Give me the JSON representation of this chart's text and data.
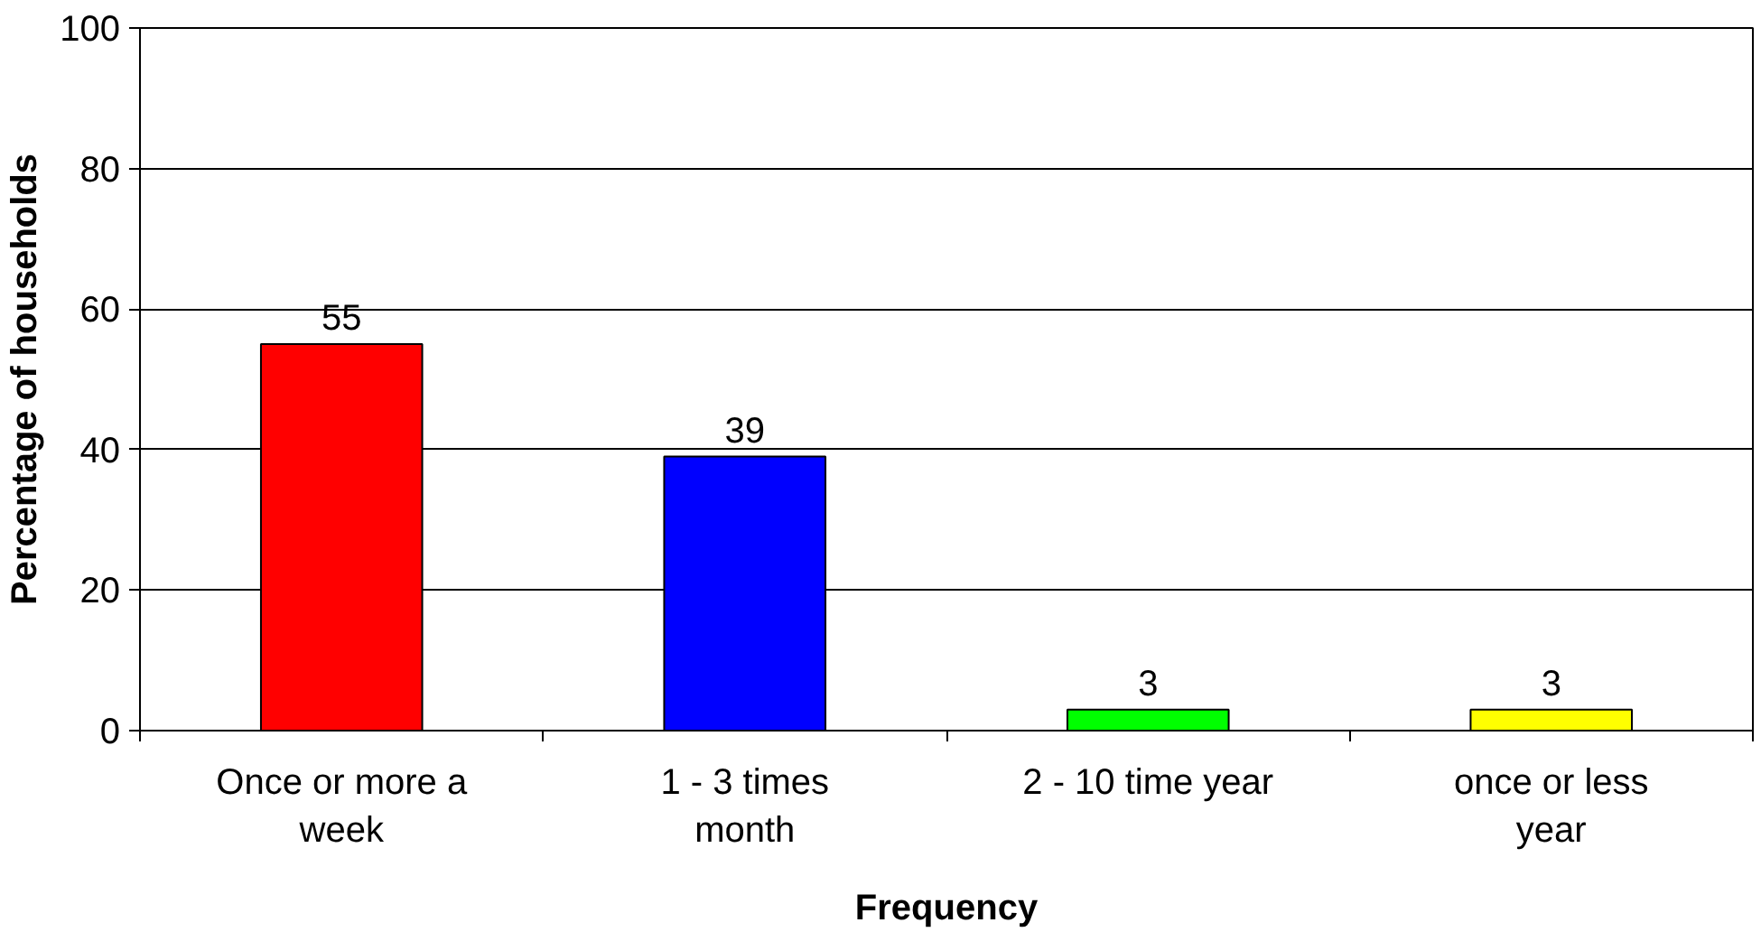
{
  "chart_data": {
    "type": "bar",
    "xlabel": "Frequency",
    "ylabel": "Percentage of households",
    "categories": [
      "Once or more a week",
      "1 - 3 times month",
      "2 - 10 time year",
      "once or less year"
    ],
    "values": [
      55,
      39,
      3,
      3
    ],
    "colors": [
      "#ff0000",
      "#0000ff",
      "#00ff00",
      "#ffff00"
    ],
    "ylim": [
      0,
      100
    ],
    "yticks": [
      0,
      20,
      40,
      60,
      80,
      100
    ],
    "grid": "y",
    "data_labels": true
  }
}
